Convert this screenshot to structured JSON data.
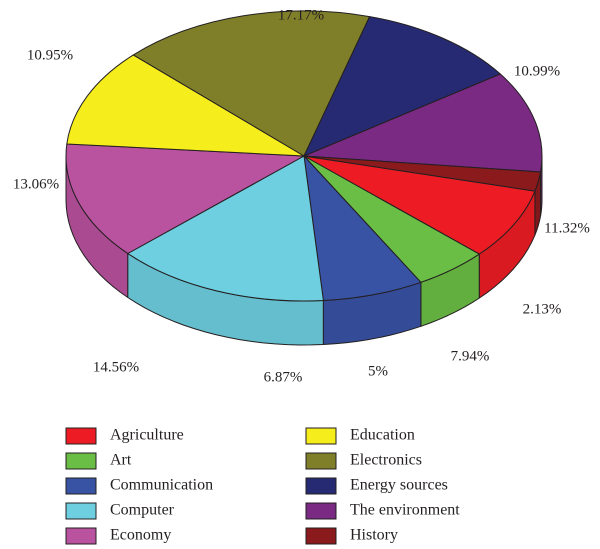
{
  "chart_data": {
    "type": "pie",
    "style": "3d",
    "categories": [
      "Agriculture",
      "Art",
      "Communication",
      "Computer",
      "Economy",
      "Education",
      "Electronics",
      "Energy sources",
      "The environment",
      "History"
    ],
    "values": [
      7.94,
      5,
      6.87,
      14.56,
      13.06,
      10.95,
      17.17,
      10.99,
      11.32,
      2.13
    ],
    "labels": [
      "7.94%",
      "5%",
      "6.87%",
      "14.56%",
      "13.06%",
      "10.95%",
      "17.17%",
      "10.99%",
      "11.32%",
      "2.13%"
    ],
    "colors": [
      "#ed1c24",
      "#6abd45",
      "#3953a4",
      "#6dcfe0",
      "#b9529f",
      "#f6ed1d",
      "#7f7f2a",
      "#262a72",
      "#7a2a83",
      "#8b1a1d"
    ],
    "legend_placement": "bottom",
    "legend_columns": [
      [
        "Agriculture",
        "Art",
        "Communication",
        "Computer",
        "Economy"
      ],
      [
        "Education",
        "Electronics",
        "Energy sources",
        "The environment",
        "History"
      ]
    ]
  }
}
